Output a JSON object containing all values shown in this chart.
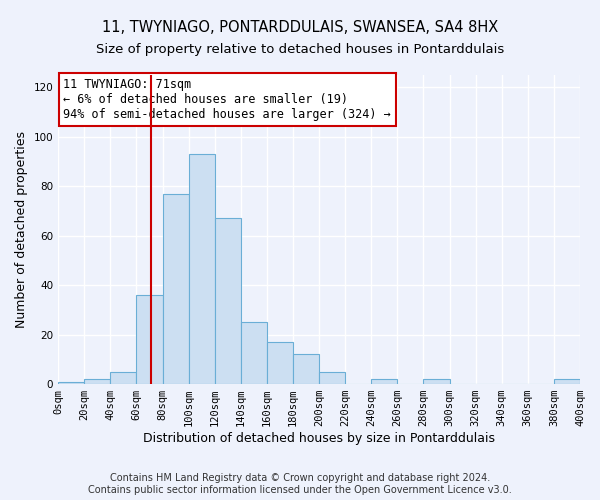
{
  "title": "11, TWYNIAGO, PONTARDDULAIS, SWANSEA, SA4 8HX",
  "subtitle": "Size of property relative to detached houses in Pontarddulais",
  "xlabel": "Distribution of detached houses by size in Pontarddulais",
  "ylabel": "Number of detached properties",
  "bin_edges": [
    0,
    20,
    40,
    60,
    80,
    100,
    120,
    140,
    160,
    180,
    200,
    220,
    240,
    260,
    280,
    300,
    320,
    340,
    360,
    380,
    400
  ],
  "bar_values": [
    1,
    2,
    5,
    36,
    77,
    93,
    67,
    25,
    17,
    12,
    5,
    0,
    2,
    0,
    2,
    0,
    0,
    0,
    0,
    2
  ],
  "bar_color": "#ccdff2",
  "bar_edge_color": "#6aaed6",
  "reference_line_x": 71,
  "ylim": [
    0,
    125
  ],
  "yticks": [
    0,
    20,
    40,
    60,
    80,
    100,
    120
  ],
  "xtick_labels": [
    "0sqm",
    "20sqm",
    "40sqm",
    "60sqm",
    "80sqm",
    "100sqm",
    "120sqm",
    "140sqm",
    "160sqm",
    "180sqm",
    "200sqm",
    "220sqm",
    "240sqm",
    "260sqm",
    "280sqm",
    "300sqm",
    "320sqm",
    "340sqm",
    "360sqm",
    "380sqm",
    "400sqm"
  ],
  "annotation_title": "11 TWYNIAGO: 71sqm",
  "annotation_line1": "← 6% of detached houses are smaller (19)",
  "annotation_line2": "94% of semi-detached houses are larger (324) →",
  "annotation_box_color": "#ffffff",
  "annotation_box_edge_color": "#cc0000",
  "footer_line1": "Contains HM Land Registry data © Crown copyright and database right 2024.",
  "footer_line2": "Contains public sector information licensed under the Open Government Licence v3.0.",
  "background_color": "#eef2fc",
  "grid_color": "#ffffff",
  "title_fontsize": 10.5,
  "subtitle_fontsize": 9.5,
  "axis_label_fontsize": 9,
  "tick_fontsize": 7.5,
  "annotation_fontsize": 8.5,
  "footer_fontsize": 7
}
